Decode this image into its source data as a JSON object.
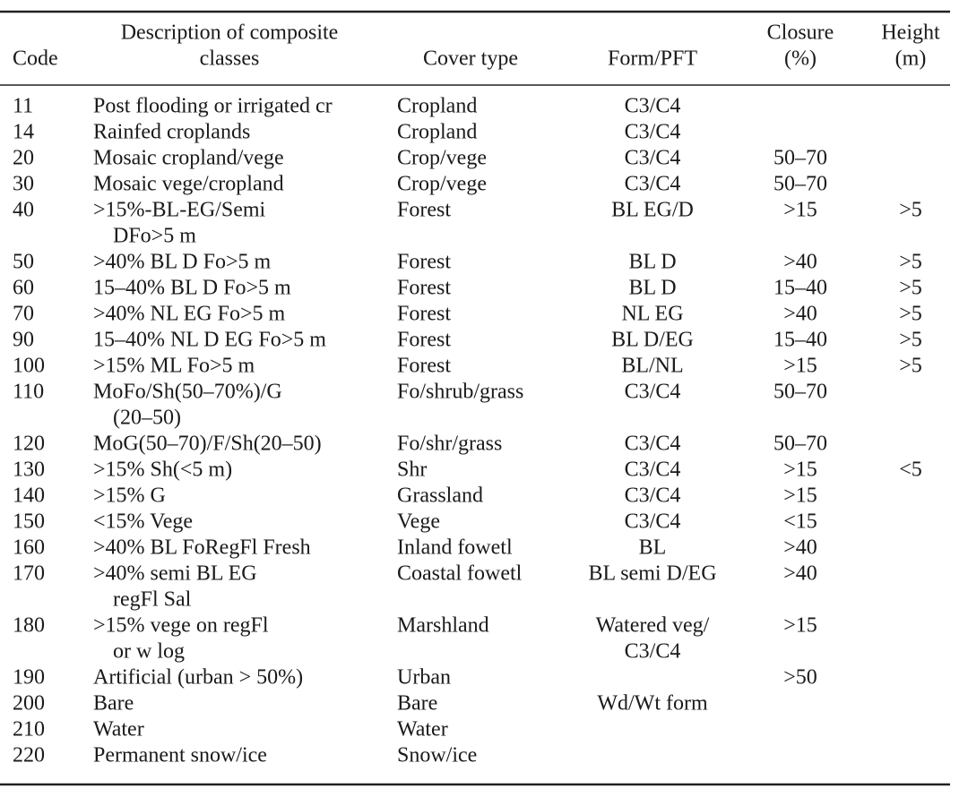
{
  "table": {
    "header": {
      "code": "Code",
      "description": [
        "Description of composite",
        "classes"
      ],
      "cover_type": "Cover type",
      "form": "Form/PFT",
      "closure": [
        "Closure",
        "(%)"
      ],
      "height": [
        "Height",
        "(m)"
      ]
    },
    "rows": [
      {
        "code": "11",
        "description": [
          "Post flooding or irrigated cr"
        ],
        "cover_type": "Cropland",
        "form": [
          "C3/C4"
        ]
      },
      {
        "code": "14",
        "description": [
          "Rainfed croplands"
        ],
        "cover_type": "Cropland",
        "form": [
          "C3/C4"
        ]
      },
      {
        "code": "20",
        "description": [
          "Mosaic cropland/vege"
        ],
        "cover_type": "Crop/vege",
        "form": [
          "C3/C4"
        ],
        "closure": "50–70"
      },
      {
        "code": "30",
        "description": [
          "Mosaic vege/cropland"
        ],
        "cover_type": "Crop/vege",
        "form": [
          "C3/C4"
        ],
        "closure": "50–70"
      },
      {
        "code": "40",
        "description": [
          ">15%-BL-EG/Semi",
          "DFo>5 m"
        ],
        "cover_type": "Forest",
        "form": [
          "BL EG/D"
        ],
        "closure": ">15",
        "height": ">5"
      },
      {
        "code": "50",
        "description": [
          ">40% BL D Fo>5 m"
        ],
        "cover_type": "Forest",
        "form": [
          "BL D"
        ],
        "closure": ">40",
        "height": ">5"
      },
      {
        "code": "60",
        "description": [
          "15–40% BL D Fo>5 m"
        ],
        "cover_type": "Forest",
        "form": [
          "BL D"
        ],
        "closure": "15–40",
        "height": ">5"
      },
      {
        "code": "70",
        "description": [
          ">40% NL EG Fo>5 m"
        ],
        "cover_type": "Forest",
        "form": [
          "NL EG"
        ],
        "closure": ">40",
        "height": ">5"
      },
      {
        "code": "90",
        "description": [
          "15–40% NL D EG Fo>5 m"
        ],
        "cover_type": "Forest",
        "form": [
          "BL D/EG"
        ],
        "closure": "15–40",
        "height": ">5"
      },
      {
        "code": "100",
        "description": [
          ">15% ML Fo>5 m"
        ],
        "cover_type": "Forest",
        "form": [
          "BL/NL"
        ],
        "closure": ">15",
        "height": ">5"
      },
      {
        "code": "110",
        "description": [
          "MoFo/Sh(50–70%)/G",
          "(20–50)"
        ],
        "cover_type": "Fo/shrub/grass",
        "form": [
          "C3/C4"
        ],
        "closure": "50–70"
      },
      {
        "code": "120",
        "description": [
          "MoG(50–70)/F/Sh(20–50)"
        ],
        "cover_type": "Fo/shr/grass",
        "form": [
          "C3/C4"
        ],
        "closure": "50–70"
      },
      {
        "code": "130",
        "description": [
          ">15% Sh(<5 m)"
        ],
        "cover_type": "Shr",
        "form": [
          "C3/C4"
        ],
        "closure": ">15",
        "height": "<5"
      },
      {
        "code": "140",
        "description": [
          ">15% G"
        ],
        "cover_type": "Grassland",
        "form": [
          "C3/C4"
        ],
        "closure": ">15"
      },
      {
        "code": "150",
        "description": [
          "<15% Vege"
        ],
        "cover_type": "Vege",
        "form": [
          "C3/C4"
        ],
        "closure": "<15"
      },
      {
        "code": "160",
        "description": [
          ">40% BL FoRegFl Fresh"
        ],
        "cover_type": "Inland fowetl",
        "form": [
          "BL"
        ],
        "closure": ">40"
      },
      {
        "code": "170",
        "description": [
          ">40% semi BL EG",
          "regFl Sal"
        ],
        "cover_type": "Coastal fowetl",
        "form": [
          "BL semi D/EG"
        ],
        "closure": ">40"
      },
      {
        "code": "180",
        "description": [
          ">15% vege on regFl",
          "or w log"
        ],
        "cover_type": "Marshland",
        "form": [
          "Watered veg/",
          "C3/C4"
        ],
        "closure": ">15"
      },
      {
        "code": "190",
        "description": [
          "Artificial (urban > 50%)"
        ],
        "cover_type": "Urban",
        "closure": ">50"
      },
      {
        "code": "200",
        "description": [
          "Bare"
        ],
        "cover_type": "Bare",
        "form": [
          "Wd/Wt form"
        ]
      },
      {
        "code": "210",
        "description": [
          "Water"
        ],
        "cover_type": "Water"
      },
      {
        "code": "220",
        "description": [
          "Permanent snow/ice"
        ],
        "cover_type": "Snow/ice"
      }
    ]
  }
}
